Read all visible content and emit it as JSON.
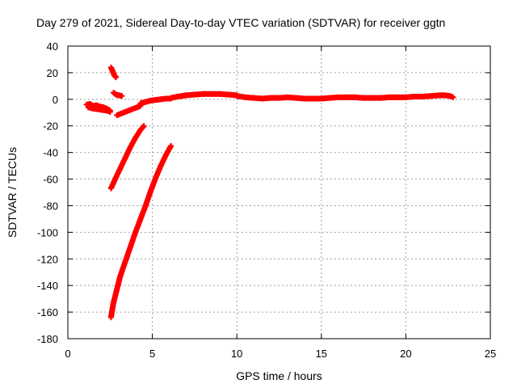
{
  "chart_data": {
    "type": "scatter",
    "title": "Day 279 of 2021, Sidereal Day-to-day VTEC variation (SDTVAR) for receiver ggtn",
    "xlabel": "GPS time / hours",
    "ylabel": "SDTVAR / TECUs",
    "xlim": [
      0,
      25
    ],
    "ylim": [
      -180,
      40
    ],
    "xticks": [
      "0",
      "5",
      "10",
      "15",
      "20",
      "25"
    ],
    "yticks": [
      "40",
      "20",
      "0",
      "-20",
      "-40",
      "-60",
      "-80",
      "-100",
      "-120",
      "-140",
      "-160",
      "-180"
    ],
    "grid": true,
    "marker": "plus",
    "series": [
      {
        "color": "#ff0000",
        "segments": [
          [
            [
              1.1,
              -4
            ],
            [
              1.3,
              -3.5
            ],
            [
              1.5,
              -5
            ],
            [
              1.7,
              -4.5
            ],
            [
              1.9,
              -5.5
            ],
            [
              2.1,
              -6
            ],
            [
              2.3,
              -7
            ],
            [
              2.5,
              -8.5
            ]
          ],
          [
            [
              1.2,
              -6
            ],
            [
              1.5,
              -7
            ],
            [
              1.8,
              -7.5
            ],
            [
              2.0,
              -8
            ],
            [
              2.3,
              -8.5
            ],
            [
              2.5,
              -9.5
            ]
          ],
          [
            [
              2.55,
              24
            ],
            [
              2.65,
              21
            ],
            [
              2.75,
              18
            ],
            [
              2.85,
              16.5
            ]
          ],
          [
            [
              2.7,
              5
            ],
            [
              2.85,
              3.5
            ],
            [
              3.0,
              3
            ],
            [
              3.2,
              2.5
            ]
          ],
          [
            [
              2.9,
              -12
            ],
            [
              3.3,
              -10
            ],
            [
              3.7,
              -8
            ],
            [
              4.1,
              -6
            ],
            [
              4.3,
              -5
            ]
          ],
          [
            [
              4.3,
              -3
            ],
            [
              4.6,
              -2
            ],
            [
              4.9,
              -1
            ],
            [
              5.2,
              -0.5
            ],
            [
              5.5,
              0
            ],
            [
              5.8,
              0.5
            ],
            [
              6.1,
              0.5
            ]
          ],
          [
            [
              6.1,
              1
            ],
            [
              6.5,
              2
            ],
            [
              7.0,
              3
            ],
            [
              7.5,
              3.5
            ],
            [
              8.0,
              4
            ],
            [
              8.5,
              4
            ],
            [
              9.0,
              4
            ],
            [
              9.5,
              3.5
            ],
            [
              10.0,
              3
            ]
          ],
          [
            [
              10.0,
              2.5
            ],
            [
              10.5,
              1.5
            ],
            [
              11.0,
              1
            ],
            [
              11.5,
              0.5
            ],
            [
              12.0,
              1
            ],
            [
              12.5,
              1
            ],
            [
              13.0,
              1.5
            ],
            [
              13.5,
              1
            ],
            [
              14.0,
              0.5
            ],
            [
              14.5,
              0.5
            ],
            [
              15.0,
              0.5
            ],
            [
              15.5,
              1
            ],
            [
              16.0,
              1.5
            ],
            [
              16.5,
              1.5
            ],
            [
              17.0,
              1.5
            ],
            [
              17.5,
              1
            ],
            [
              18.0,
              1
            ],
            [
              18.5,
              1
            ],
            [
              19.0,
              1.5
            ],
            [
              19.5,
              1.5
            ],
            [
              20.0,
              1.5
            ],
            [
              20.5,
              2
            ],
            [
              21.0,
              2
            ],
            [
              21.5,
              2.5
            ],
            [
              22.0,
              3
            ],
            [
              22.3,
              3
            ],
            [
              22.6,
              2.5
            ],
            [
              22.8,
              1.5
            ]
          ],
          [
            [
              2.55,
              -67
            ],
            [
              2.8,
              -60
            ],
            [
              3.1,
              -52
            ],
            [
              3.4,
              -44
            ],
            [
              3.7,
              -36
            ],
            [
              4.0,
              -29
            ],
            [
              4.3,
              -23
            ],
            [
              4.5,
              -20
            ]
          ],
          [
            [
              2.55,
              -164
            ],
            [
              2.7,
              -153
            ],
            [
              2.9,
              -143
            ],
            [
              3.1,
              -133
            ],
            [
              3.4,
              -122
            ],
            [
              3.7,
              -111
            ],
            [
              4.0,
              -100
            ],
            [
              4.3,
              -90
            ],
            [
              4.6,
              -80
            ],
            [
              4.9,
              -69
            ],
            [
              5.2,
              -59
            ],
            [
              5.5,
              -50
            ],
            [
              5.8,
              -42
            ],
            [
              6.1,
              -35
            ]
          ]
        ]
      }
    ]
  }
}
